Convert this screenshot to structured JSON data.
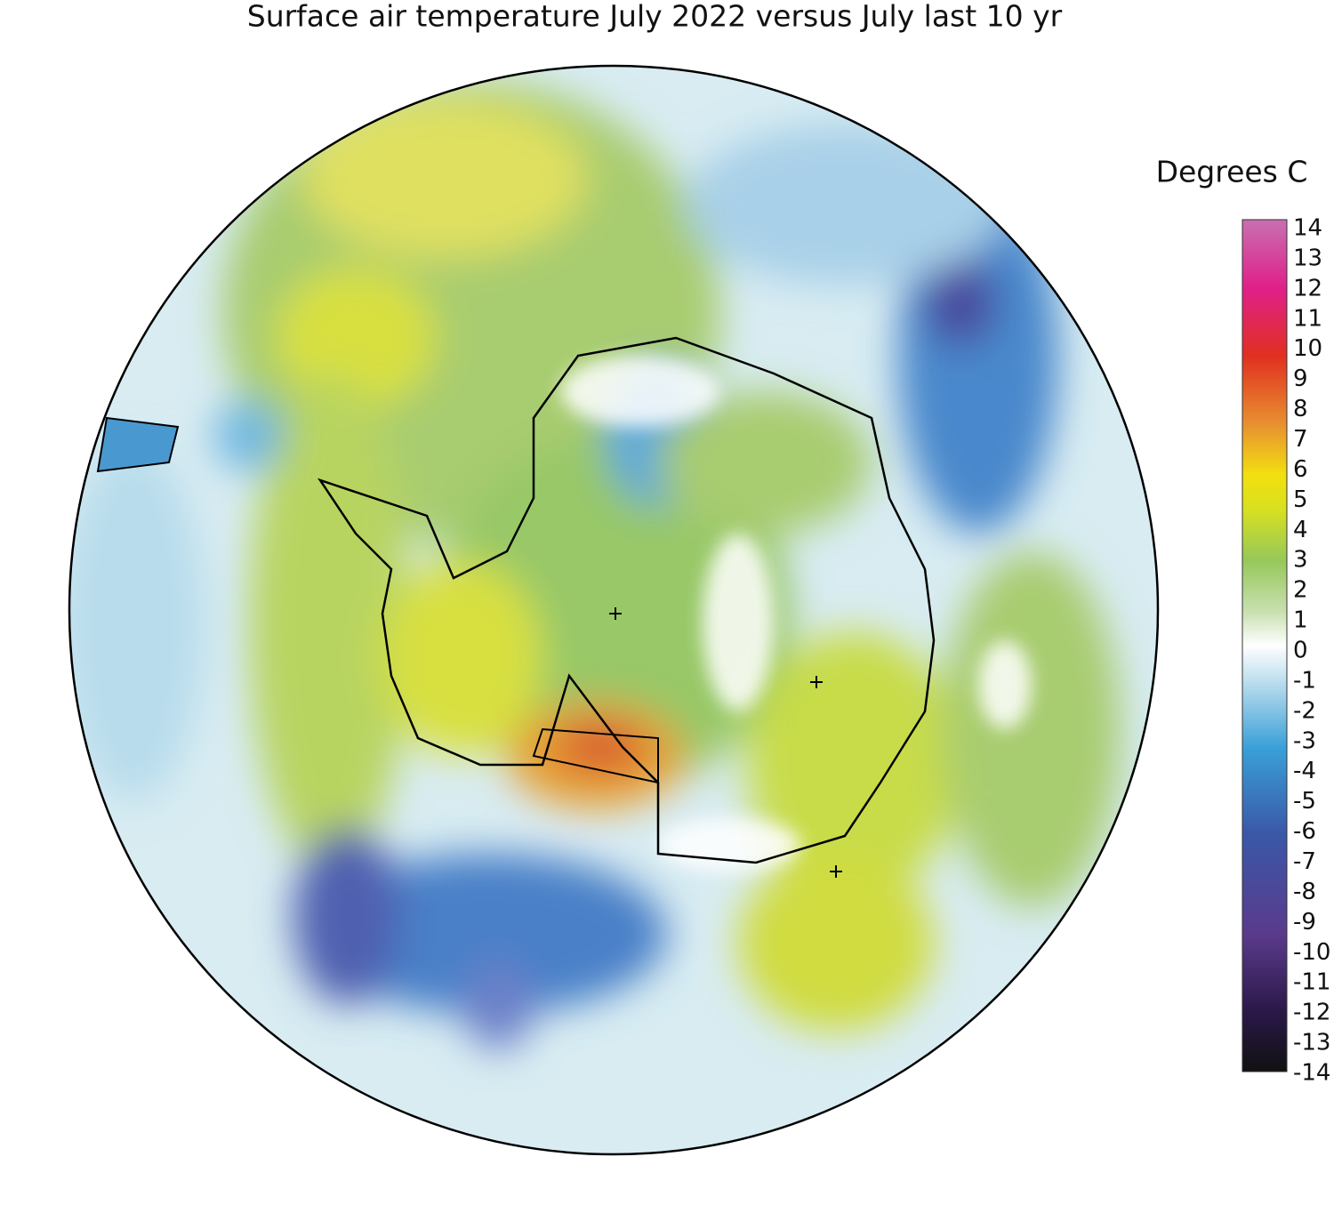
{
  "title": "Surface air temperature July 2022 versus July last 10 yr",
  "legend": {
    "title": "Degrees C",
    "ticks": [
      14,
      13,
      12,
      11,
      10,
      9,
      8,
      7,
      6,
      5,
      4,
      3,
      2,
      1,
      0,
      -1,
      -2,
      -3,
      -4,
      -5,
      -6,
      -7,
      -8,
      -9,
      -10,
      -11,
      -12,
      -13,
      -14
    ]
  }
}
